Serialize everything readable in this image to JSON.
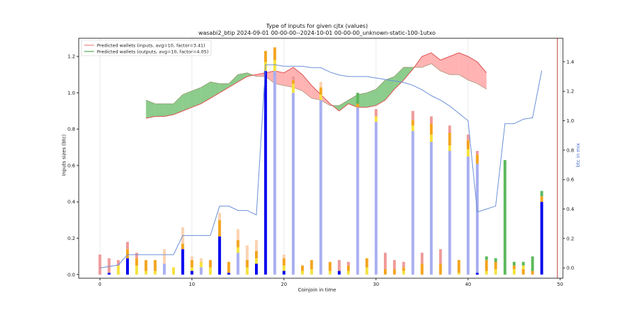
{
  "chart_data": {
    "type": "bar",
    "title": "Type of inputs for given cjtx (values)",
    "subtitle": "wasabi2_btip 2024-09-01 00-00-00--2024-10-01 00-00-00_unknown-static-100-1utxo",
    "xlabel": "Coinjoin in time",
    "ylabel": "Inputs sizes (btc)",
    "y2label": "btc in mix",
    "xlim": [
      -2.3,
      50.3
    ],
    "ylim": [
      -0.02,
      1.3
    ],
    "y2lim": [
      -0.07,
      1.56
    ],
    "xticks": [
      0,
      10,
      20,
      30,
      40,
      50
    ],
    "yticks": [
      0.0,
      0.2,
      0.4,
      0.6,
      0.8,
      1.0,
      1.2
    ],
    "y2ticks": [
      0.0,
      0.2,
      0.4,
      0.6,
      0.8,
      1.0,
      1.2,
      1.4
    ],
    "grid_x": true,
    "legend_position": "top-left",
    "colors": {
      "remix": "#0000ee",
      "remix_light": "#a8aef0",
      "fresh": "#f4a41e",
      "fresh_yellow": "#f5e23c",
      "pinkish": "#ee9a9a",
      "peach": "#fbd2b0",
      "green_bar": "#5cb85c",
      "mix_line": "#6a8fd8",
      "band_inputs": "#ff9999",
      "band_outputs": "#66bb66",
      "line_inputs": "#e05050",
      "line_outputs": "#7a6a3a",
      "vline": "#c0392b"
    },
    "legend": [
      {
        "label": "Predicted wallets (inputs, avg=10, factor=3.41)",
        "color": "#e88080"
      },
      {
        "label": "Predicted wallets (outputs, avg=10, factor=4.05)",
        "color": "#55aa55"
      }
    ],
    "bars": [
      {
        "x": 0,
        "segments": [
          {
            "c": "pinkish",
            "v": 0.11
          }
        ]
      },
      {
        "x": 1,
        "segments": [
          {
            "c": "remix",
            "v": 0.01
          },
          {
            "c": "pinkish",
            "v": 0.08
          }
        ]
      },
      {
        "x": 2,
        "segments": [
          {
            "c": "fresh_yellow",
            "v": 0.05
          },
          {
            "c": "pinkish",
            "v": 0.03
          }
        ]
      },
      {
        "x": 3,
        "segments": [
          {
            "c": "remix",
            "v": 0.09
          },
          {
            "c": "fresh",
            "v": 0.05
          },
          {
            "c": "pinkish",
            "v": 0.04
          }
        ]
      },
      {
        "x": 4,
        "segments": [
          {
            "c": "fresh_yellow",
            "v": 0.05
          },
          {
            "c": "fresh",
            "v": 0.04
          },
          {
            "c": "pinkish",
            "v": 0.03
          }
        ]
      },
      {
        "x": 5,
        "segments": [
          {
            "c": "fresh_yellow",
            "v": 0.02
          },
          {
            "c": "fresh",
            "v": 0.06
          }
        ]
      },
      {
        "x": 6,
        "segments": [
          {
            "c": "fresh_yellow",
            "v": 0.02
          },
          {
            "c": "fresh",
            "v": 0.06
          }
        ]
      },
      {
        "x": 7,
        "segments": [
          {
            "c": "remix_light",
            "v": 0.06
          },
          {
            "c": "peach",
            "v": 0.08
          }
        ]
      },
      {
        "x": 8,
        "segments": [
          {
            "c": "fresh_yellow",
            "v": 0.04
          }
        ]
      },
      {
        "x": 9,
        "segments": [
          {
            "c": "remix",
            "v": 0.14
          },
          {
            "c": "fresh",
            "v": 0.03
          },
          {
            "c": "peach",
            "v": 0.09
          }
        ]
      },
      {
        "x": 10,
        "segments": [
          {
            "c": "remix",
            "v": 0.02
          },
          {
            "c": "fresh_yellow",
            "v": 0.02
          },
          {
            "c": "fresh",
            "v": 0.04
          },
          {
            "c": "peach",
            "v": 0.02
          }
        ]
      },
      {
        "x": 11,
        "segments": [
          {
            "c": "remix_light",
            "v": 0.04
          },
          {
            "c": "fresh_yellow",
            "v": 0.03
          },
          {
            "c": "peach",
            "v": 0.02
          }
        ]
      },
      {
        "x": 12,
        "segments": [
          {
            "c": "fresh_yellow",
            "v": 0.04
          },
          {
            "c": "fresh",
            "v": 0.04
          }
        ]
      },
      {
        "x": 13,
        "segments": [
          {
            "c": "remix",
            "v": 0.21
          },
          {
            "c": "fresh",
            "v": 0.09
          },
          {
            "c": "peach",
            "v": 0.04
          }
        ]
      },
      {
        "x": 14,
        "segments": [
          {
            "c": "remix",
            "v": 0.01
          },
          {
            "c": "fresh",
            "v": 0.06
          }
        ]
      },
      {
        "x": 15,
        "segments": [
          {
            "c": "remix_light",
            "v": 0.12
          },
          {
            "c": "fresh_yellow",
            "v": 0.03
          },
          {
            "c": "fresh",
            "v": 0.04
          },
          {
            "c": "peach",
            "v": 0.06
          }
        ]
      },
      {
        "x": 16,
        "segments": [
          {
            "c": "fresh_yellow",
            "v": 0.04
          },
          {
            "c": "fresh",
            "v": 0.04
          },
          {
            "c": "peach",
            "v": 0.08
          }
        ]
      },
      {
        "x": 17,
        "segments": [
          {
            "c": "remix",
            "v": 0.06
          },
          {
            "c": "fresh_yellow",
            "v": 0.03
          },
          {
            "c": "fresh",
            "v": 0.04
          },
          {
            "c": "peach",
            "v": 0.06
          }
        ]
      },
      {
        "x": 18,
        "segments": [
          {
            "c": "remix",
            "v": 1.12
          },
          {
            "c": "fresh_yellow",
            "v": 0.05
          },
          {
            "c": "fresh",
            "v": 0.06
          }
        ]
      },
      {
        "x": 19,
        "segments": [
          {
            "c": "remix_light",
            "v": 1.12
          },
          {
            "c": "fresh_yellow",
            "v": 0.06
          },
          {
            "c": "fresh",
            "v": 0.07
          }
        ]
      },
      {
        "x": 20,
        "segments": [
          {
            "c": "remix",
            "v": 0.02
          },
          {
            "c": "fresh_yellow",
            "v": 0.03
          },
          {
            "c": "fresh",
            "v": 0.04
          },
          {
            "c": "peach",
            "v": 0.02
          }
        ]
      },
      {
        "x": 21,
        "segments": [
          {
            "c": "remix_light",
            "v": 1.0
          },
          {
            "c": "fresh_yellow",
            "v": 0.05
          },
          {
            "c": "fresh",
            "v": 0.02
          },
          {
            "c": "pinkish",
            "v": 0.02
          }
        ]
      },
      {
        "x": 22,
        "segments": [
          {
            "c": "fresh_yellow",
            "v": 0.02
          },
          {
            "c": "fresh",
            "v": 0.03
          }
        ]
      },
      {
        "x": 23,
        "segments": [
          {
            "c": "fresh_yellow",
            "v": 0.03
          },
          {
            "c": "fresh",
            "v": 0.05
          }
        ]
      },
      {
        "x": 24,
        "segments": [
          {
            "c": "remix_light",
            "v": 0.96
          },
          {
            "c": "fresh_yellow",
            "v": 0.03
          },
          {
            "c": "fresh",
            "v": 0.04
          },
          {
            "c": "peach",
            "v": 0.03
          }
        ]
      },
      {
        "x": 25,
        "segments": [
          {
            "c": "fresh_yellow",
            "v": 0.02
          },
          {
            "c": "fresh",
            "v": 0.05
          }
        ]
      },
      {
        "x": 26,
        "segments": [
          {
            "c": "remix",
            "v": 0.02
          },
          {
            "c": "pinkish",
            "v": 0.06
          }
        ]
      },
      {
        "x": 27,
        "segments": [
          {
            "c": "fresh_yellow",
            "v": 0.02
          },
          {
            "c": "fresh",
            "v": 0.03
          },
          {
            "c": "pinkish",
            "v": 0.02
          }
        ]
      },
      {
        "x": 28,
        "segments": [
          {
            "c": "remix_light",
            "v": 0.92
          },
          {
            "c": "fresh",
            "v": 0.02
          },
          {
            "c": "green_bar",
            "v": 0.06
          }
        ]
      },
      {
        "x": 29,
        "segments": [
          {
            "c": "fresh_yellow",
            "v": 0.04
          },
          {
            "c": "fresh",
            "v": 0.05
          }
        ]
      },
      {
        "x": 30,
        "segments": [
          {
            "c": "remix_light",
            "v": 0.84
          },
          {
            "c": "fresh_yellow",
            "v": 0.03
          },
          {
            "c": "pinkish",
            "v": 0.04
          }
        ]
      },
      {
        "x": 31,
        "segments": [
          {
            "c": "fresh",
            "v": 0.03
          },
          {
            "c": "pinkish",
            "v": 0.09
          }
        ]
      },
      {
        "x": 32,
        "segments": [
          {
            "c": "fresh",
            "v": 0.03
          },
          {
            "c": "pinkish",
            "v": 0.05
          }
        ]
      },
      {
        "x": 33,
        "segments": [
          {
            "c": "fresh_yellow",
            "v": 0.02
          },
          {
            "c": "fresh",
            "v": 0.02
          },
          {
            "c": "pinkish",
            "v": 0.03
          }
        ]
      },
      {
        "x": 34,
        "segments": [
          {
            "c": "remix_light",
            "v": 0.79
          },
          {
            "c": "fresh_yellow",
            "v": 0.03
          },
          {
            "c": "fresh",
            "v": 0.03
          },
          {
            "c": "pinkish",
            "v": 0.05
          }
        ]
      },
      {
        "x": 35,
        "segments": [
          {
            "c": "fresh",
            "v": 0.06
          },
          {
            "c": "pinkish",
            "v": 0.06
          }
        ]
      },
      {
        "x": 36,
        "segments": [
          {
            "c": "remix_light",
            "v": 0.73
          },
          {
            "c": "fresh_yellow",
            "v": 0.04
          },
          {
            "c": "fresh",
            "v": 0.06
          },
          {
            "c": "pinkish",
            "v": 0.04
          }
        ]
      },
      {
        "x": 37,
        "segments": [
          {
            "c": "fresh",
            "v": 0.06
          },
          {
            "c": "pinkish",
            "v": 0.08
          }
        ]
      },
      {
        "x": 38,
        "segments": [
          {
            "c": "remix_light",
            "v": 0.68
          },
          {
            "c": "fresh_yellow",
            "v": 0.03
          },
          {
            "c": "fresh",
            "v": 0.07
          },
          {
            "c": "pinkish",
            "v": 0.04
          }
        ]
      },
      {
        "x": 39,
        "segments": [
          {
            "c": "fresh_yellow",
            "v": 0.01
          },
          {
            "c": "fresh",
            "v": 0.07
          }
        ]
      },
      {
        "x": 40,
        "segments": [
          {
            "c": "remix_light",
            "v": 0.65
          },
          {
            "c": "fresh_yellow",
            "v": 0.04
          },
          {
            "c": "fresh",
            "v": 0.05
          },
          {
            "c": "pinkish",
            "v": 0.03
          }
        ]
      },
      {
        "x": 41,
        "segments": [
          {
            "c": "remix",
            "v": 0.01
          },
          {
            "c": "remix_light",
            "v": 0.6
          },
          {
            "c": "fresh",
            "v": 0.05
          },
          {
            "c": "pinkish",
            "v": 0.02
          }
        ]
      },
      {
        "x": 42,
        "segments": [
          {
            "c": "fresh_yellow",
            "v": 0.02
          },
          {
            "c": "fresh",
            "v": 0.06
          },
          {
            "c": "green_bar",
            "v": 0.02
          }
        ]
      },
      {
        "x": 43,
        "segments": [
          {
            "c": "fresh_yellow",
            "v": 0.03
          },
          {
            "c": "fresh",
            "v": 0.04
          },
          {
            "c": "green_bar",
            "v": 0.02
          }
        ]
      },
      {
        "x": 44,
        "segments": [
          {
            "c": "green_bar",
            "v": 0.63
          }
        ]
      },
      {
        "x": 45,
        "segments": [
          {
            "c": "fresh_yellow",
            "v": 0.03
          },
          {
            "c": "fresh",
            "v": 0.02
          },
          {
            "c": "green_bar",
            "v": 0.02
          }
        ]
      },
      {
        "x": 46,
        "segments": [
          {
            "c": "fresh",
            "v": 0.03
          },
          {
            "c": "fresh_yellow",
            "v": 0.02
          },
          {
            "c": "green_bar",
            "v": 0.02
          }
        ]
      },
      {
        "x": 47,
        "segments": [
          {
            "c": "fresh",
            "v": 0.02
          },
          {
            "c": "green_bar",
            "v": 0.08
          }
        ]
      },
      {
        "x": 48,
        "segments": [
          {
            "c": "remix",
            "v": 0.4
          },
          {
            "c": "fresh",
            "v": 0.03
          },
          {
            "c": "green_bar",
            "v": 0.03
          }
        ]
      }
    ],
    "btc_in_mix": {
      "x": [
        0,
        1,
        2,
        3,
        4,
        5,
        6,
        7,
        8,
        9,
        10,
        11,
        12,
        13,
        14,
        15,
        16,
        17,
        18,
        19,
        20,
        21,
        22,
        23,
        24,
        25,
        26,
        27,
        28,
        29,
        30,
        31,
        32,
        33,
        34,
        35,
        36,
        37,
        38,
        39,
        40,
        41,
        42,
        43,
        44,
        45,
        46,
        47,
        48
      ],
      "y": [
        0.0,
        0.01,
        0.02,
        0.09,
        0.09,
        0.09,
        0.09,
        0.09,
        0.09,
        0.22,
        0.22,
        0.22,
        0.22,
        0.42,
        0.42,
        0.39,
        0.39,
        0.36,
        1.38,
        1.38,
        1.37,
        1.37,
        1.37,
        1.36,
        1.36,
        1.33,
        1.31,
        1.3,
        1.3,
        1.3,
        1.29,
        1.28,
        1.27,
        1.26,
        1.24,
        1.21,
        1.17,
        1.14,
        1.1,
        1.05,
        1.0,
        0.38,
        0.4,
        0.42,
        0.98,
        0.98,
        1.01,
        1.02,
        1.34
      ]
    },
    "predicted_inputs": {
      "label": "Predicted wallets (inputs, avg=10, factor=3.41)",
      "x": [
        5,
        6,
        7,
        8,
        9,
        10,
        11,
        12,
        13,
        14,
        15,
        16,
        17,
        18,
        19,
        20,
        21,
        22,
        23,
        24,
        25,
        26,
        27,
        28,
        29,
        30,
        31,
        32,
        33,
        34,
        35,
        36,
        37,
        38,
        39,
        40,
        41,
        42
      ],
      "y": [
        0.86,
        0.87,
        0.87,
        0.88,
        0.9,
        0.92,
        0.94,
        0.97,
        1.0,
        1.03,
        1.06,
        1.09,
        1.1,
        1.11,
        1.12,
        1.11,
        1.14,
        1.1,
        1.04,
        0.99,
        0.94,
        0.9,
        0.94,
        0.92,
        0.92,
        0.93,
        0.96,
        1.02,
        1.07,
        1.13,
        1.2,
        1.22,
        1.18,
        1.2,
        1.22,
        1.2,
        1.17,
        1.11
      ]
    },
    "predicted_outputs": {
      "label": "Predicted wallets (outputs, avg=10, factor=4.05)",
      "x": [
        5,
        6,
        7,
        8,
        9,
        10,
        11,
        12,
        13,
        14,
        15,
        16,
        17,
        18,
        19,
        20,
        21,
        22,
        23,
        24,
        25,
        26,
        27,
        28,
        29,
        30,
        31,
        32,
        33,
        34,
        35,
        36,
        37,
        38,
        39,
        40,
        41,
        42
      ],
      "y": [
        0.96,
        0.94,
        0.94,
        0.94,
        0.99,
        1.01,
        1.03,
        1.06,
        1.05,
        1.05,
        1.1,
        1.11,
        1.09,
        1.09,
        1.05,
        1.04,
        1.03,
        1.01,
        0.97,
        0.96,
        0.93,
        0.93,
        0.96,
        0.99,
        1.0,
        1.02,
        1.07,
        1.09,
        1.14,
        1.14,
        1.14,
        1.16,
        1.12,
        1.1,
        1.1,
        1.07,
        1.05,
        1.02
      ]
    },
    "vline_x": 49.7
  }
}
